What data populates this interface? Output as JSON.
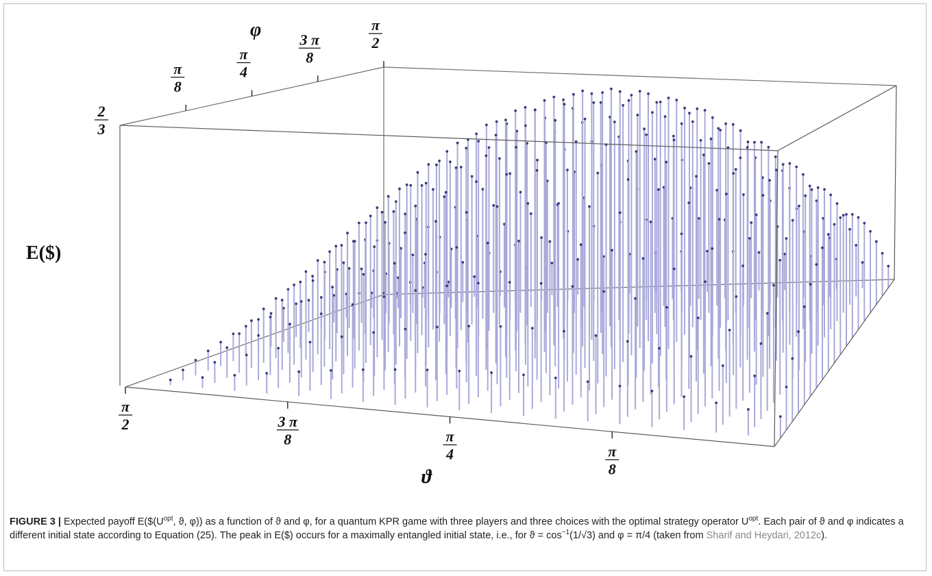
{
  "chart_data": {
    "type": "3d-stem",
    "zlabel": "E($)",
    "xlabel": "ϑ",
    "ylabel": "φ",
    "x_ticks": [
      {
        "value": 1.5708,
        "num": "π",
        "den": "2"
      },
      {
        "value": 1.1781,
        "num": "3 π",
        "den": "8"
      },
      {
        "value": 0.7854,
        "num": "π",
        "den": "4"
      },
      {
        "value": 0.3927,
        "num": "π",
        "den": "8"
      }
    ],
    "y_ticks": [
      {
        "value": 0.3927,
        "num": "π",
        "den": "8"
      },
      {
        "value": 0.7854,
        "num": "π",
        "den": "4"
      },
      {
        "value": 1.1781,
        "num": "3 π",
        "den": "8"
      },
      {
        "value": 1.5708,
        "num": "π",
        "den": "2"
      }
    ],
    "z_ticks": [
      {
        "value": 0.6667,
        "num": "2",
        "den": "3"
      }
    ],
    "xlim": [
      0,
      1.5708
    ],
    "ylim": [
      0,
      1.5708
    ],
    "zlim": [
      0,
      0.6667
    ],
    "grid_n": 20,
    "peak": {
      "theta": 0.9553,
      "phi": 0.7854,
      "value": 0.6667
    },
    "stem_color": "#a9a9da",
    "marker_color": "#3a3a7a"
  },
  "caption": {
    "label": "FIGURE 3 |",
    "text_1": "Expected payoff E($(U",
    "sup_1": "opt",
    "text_2": ", ϑ, φ)) as a function of ϑ and φ, for a quantum KPR game with three players and three choices with the optimal strategy operator U",
    "sup_2": "opt",
    "text_3": ". Each pair of ϑ and φ indicates a different initial state according to Equation (25). The peak in E($) occurs for a maximally entangled initial state, i.e., for ϑ = cos",
    "sup_3": "−1",
    "text_4": "(1/√3) and φ = π/4 (taken from ",
    "ref": "Sharif and Heydari, 2012c",
    "text_5": ")."
  }
}
